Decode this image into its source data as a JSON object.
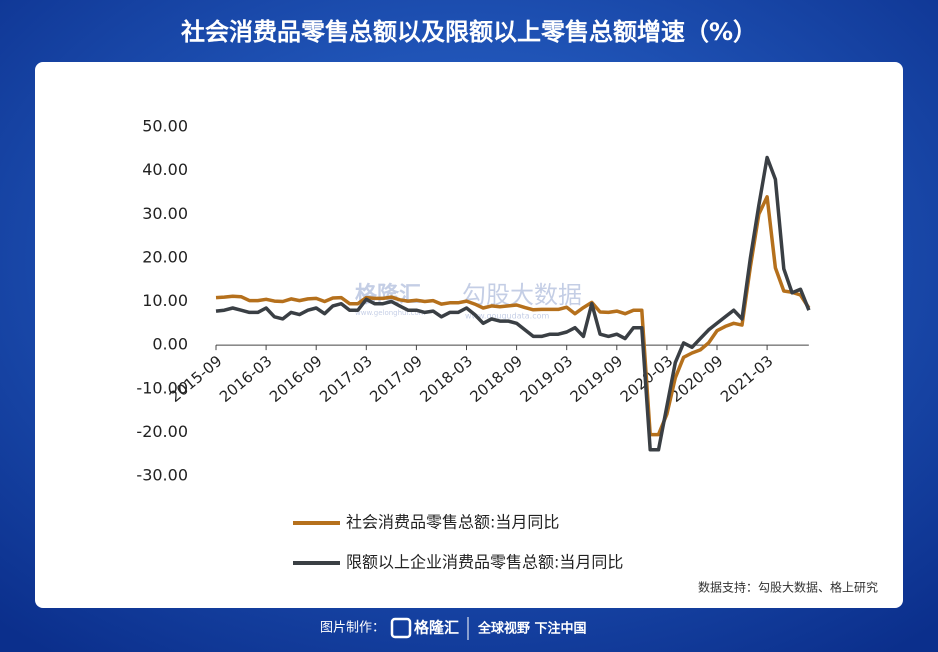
{
  "chart_data": {
    "type": "line",
    "title": "社会消费品零售总额以及限额以上零售总额增速（%）",
    "categories": [
      "2015-09",
      null,
      null,
      null,
      null,
      null,
      "2016-03",
      null,
      null,
      null,
      null,
      null,
      "2016-09",
      null,
      null,
      null,
      null,
      null,
      "2017-03",
      null,
      null,
      null,
      null,
      null,
      "2017-09",
      null,
      null,
      null,
      null,
      null,
      "2018-03",
      null,
      null,
      null,
      null,
      null,
      "2018-09",
      null,
      null,
      null,
      null,
      null,
      "2019-03",
      null,
      null,
      null,
      null,
      null,
      "2019-09",
      null,
      null,
      null,
      null,
      null,
      "2020-03",
      null,
      null,
      null,
      null,
      null,
      "2020-09",
      null,
      null,
      null,
      null,
      null,
      "2021-03",
      null,
      null,
      null,
      null,
      null
    ],
    "series": [
      {
        "name": "社会消费品零售总额:当月同比",
        "color": "#b5701c",
        "values": [
          10.9,
          11.0,
          11.2,
          11.1,
          10.2,
          10.2,
          10.5,
          10.1,
          10.0,
          10.6,
          10.2,
          10.6,
          10.7,
          10.0,
          10.8,
          10.9,
          9.5,
          9.5,
          10.9,
          10.7,
          10.7,
          11.0,
          10.4,
          10.1,
          10.3,
          10.0,
          10.2,
          9.4,
          9.7,
          9.7,
          10.1,
          9.4,
          8.5,
          9.0,
          8.8,
          9.0,
          9.2,
          8.6,
          8.1,
          8.2,
          8.2,
          8.2,
          8.7,
          7.2,
          8.6,
          9.8,
          7.6,
          7.5,
          7.8,
          7.2,
          8.0,
          8.0,
          -20.5,
          -20.5,
          -15.8,
          -7.5,
          -2.8,
          -1.8,
          -1.1,
          0.5,
          3.3,
          4.3,
          5.0,
          4.6,
          18.0,
          30.0,
          34.0,
          17.7,
          12.4,
          12.1,
          11.5,
          8.5
        ]
      },
      {
        "name": "限额以上企业消费品零售总额:当月同比",
        "color": "#3a3f44",
        "values": [
          7.8,
          8.0,
          8.5,
          8.0,
          7.5,
          7.5,
          8.5,
          6.5,
          6.0,
          7.5,
          7.0,
          8.0,
          8.5,
          7.2,
          9.0,
          9.5,
          8.0,
          8.0,
          10.5,
          9.5,
          9.5,
          10.0,
          9.0,
          8.0,
          8.0,
          7.5,
          7.8,
          6.5,
          7.5,
          7.5,
          8.5,
          7.0,
          5.0,
          6.0,
          5.5,
          5.5,
          5.0,
          3.5,
          2.0,
          2.0,
          2.5,
          2.5,
          3.0,
          4.0,
          2.0,
          9.5,
          2.5,
          2.0,
          2.5,
          1.5,
          4.0,
          4.0,
          -24.0,
          -24.0,
          -14.0,
          -4.0,
          0.5,
          -0.5,
          1.5,
          3.5,
          5.0,
          6.5,
          8.0,
          6.0,
          20.0,
          32.0,
          43.0,
          38.0,
          17.5,
          12.0,
          12.8,
          8.0
        ]
      }
    ],
    "ylim": [
      -30,
      50
    ],
    "yticks": [
      {
        "value": -30,
        "label": "-30.00"
      },
      {
        "value": -20,
        "label": "-20.00"
      },
      {
        "value": -10,
        "label": "-10.00"
      },
      {
        "value": 0,
        "label": "0.00"
      },
      {
        "value": 10,
        "label": "10.00"
      },
      {
        "value": 20,
        "label": "20.00"
      },
      {
        "value": 30,
        "label": "30.00"
      },
      {
        "value": 40,
        "label": "40.00"
      },
      {
        "value": 50,
        "label": "50.00"
      }
    ],
    "source": "数据支持：勾股大数据、格上研究",
    "watermark": {
      "brand": "格隆汇",
      "brand_url": "www.gelonghui.com",
      "data": "勾股大数据",
      "data_url": "www.gougudata.com"
    }
  },
  "footer": {
    "made_by": "图片制作：",
    "brand": "格隆汇",
    "slogan": "全球视野 下注中国"
  }
}
